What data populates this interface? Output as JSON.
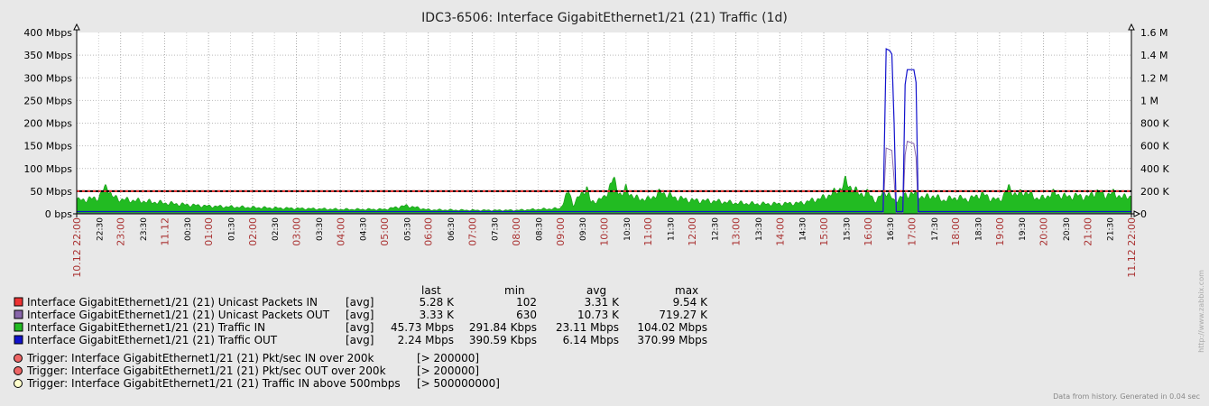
{
  "chart_data": {
    "type": "area",
    "title": "IDC3-6506: Interface GigabitEthernet1/21 (21) Traffic  (1d)",
    "y_left": {
      "range": [
        0,
        400
      ],
      "unit": "Mbps",
      "tick_labels": [
        "0 bps",
        "50 Mbps",
        "100 Mbps",
        "150 Mbps",
        "200 Mbps",
        "250 Mbps",
        "300 Mbps",
        "350 Mbps",
        "400 Mbps"
      ]
    },
    "y_right": {
      "range": [
        0,
        1600000
      ],
      "tick_labels": [
        "0",
        "200 K",
        "400 K",
        "600 K",
        "800 K",
        "1 M",
        "1.2 M",
        "1.4 M",
        "1.6 M"
      ]
    },
    "x_ticks": [
      {
        "label": "10.12 22:00",
        "major": true
      },
      {
        "label": "22:30",
        "major": false
      },
      {
        "label": "23:00",
        "major": true
      },
      {
        "label": "23:30",
        "major": false
      },
      {
        "label": "11.12",
        "major": true
      },
      {
        "label": "00:30",
        "major": false
      },
      {
        "label": "01:00",
        "major": true
      },
      {
        "label": "01:30",
        "major": false
      },
      {
        "label": "02:00",
        "major": true
      },
      {
        "label": "02:30",
        "major": false
      },
      {
        "label": "03:00",
        "major": true
      },
      {
        "label": "03:30",
        "major": false
      },
      {
        "label": "04:00",
        "major": true
      },
      {
        "label": "04:30",
        "major": false
      },
      {
        "label": "05:00",
        "major": true
      },
      {
        "label": "05:30",
        "major": false
      },
      {
        "label": "06:00",
        "major": true
      },
      {
        "label": "06:30",
        "major": false
      },
      {
        "label": "07:00",
        "major": true
      },
      {
        "label": "07:30",
        "major": false
      },
      {
        "label": "08:00",
        "major": true
      },
      {
        "label": "08:30",
        "major": false
      },
      {
        "label": "09:00",
        "major": true
      },
      {
        "label": "09:30",
        "major": false
      },
      {
        "label": "10:00",
        "major": true
      },
      {
        "label": "10:30",
        "major": false
      },
      {
        "label": "11:00",
        "major": true
      },
      {
        "label": "11:30",
        "major": false
      },
      {
        "label": "12:00",
        "major": true
      },
      {
        "label": "12:30",
        "major": false
      },
      {
        "label": "13:00",
        "major": true
      },
      {
        "label": "13:30",
        "major": false
      },
      {
        "label": "14:00",
        "major": true
      },
      {
        "label": "14:30",
        "major": false
      },
      {
        "label": "15:00",
        "major": true
      },
      {
        "label": "15:30",
        "major": false
      },
      {
        "label": "16:00",
        "major": true
      },
      {
        "label": "16:30",
        "major": false
      },
      {
        "label": "17:00",
        "major": true
      },
      {
        "label": "17:30",
        "major": false
      },
      {
        "label": "18:00",
        "major": true
      },
      {
        "label": "18:30",
        "major": false
      },
      {
        "label": "19:00",
        "major": true
      },
      {
        "label": "19:30",
        "major": false
      },
      {
        "label": "20:00",
        "major": true
      },
      {
        "label": "20:30",
        "major": false
      },
      {
        "label": "21:00",
        "major": true
      },
      {
        "label": "21:30",
        "major": false
      },
      {
        "label": "11.12 22:00",
        "major": true
      }
    ],
    "traffic_in_mbps": [
      {
        "t": 0.0,
        "v": 30
      },
      {
        "t": 0.25,
        "v": 32
      },
      {
        "t": 0.5,
        "v": 36
      },
      {
        "t": 0.7,
        "v": 64
      },
      {
        "t": 0.8,
        "v": 38
      },
      {
        "t": 1.0,
        "v": 32
      },
      {
        "t": 1.5,
        "v": 28
      },
      {
        "t": 2.0,
        "v": 24
      },
      {
        "t": 2.5,
        "v": 20
      },
      {
        "t": 3.0,
        "v": 17
      },
      {
        "t": 4.0,
        "v": 14
      },
      {
        "t": 5.0,
        "v": 12
      },
      {
        "t": 6.0,
        "v": 10
      },
      {
        "t": 7.0,
        "v": 10
      },
      {
        "t": 7.5,
        "v": 18
      },
      {
        "t": 8.0,
        "v": 9
      },
      {
        "t": 9.0,
        "v": 8
      },
      {
        "t": 10.0,
        "v": 8
      },
      {
        "t": 10.5,
        "v": 10
      },
      {
        "t": 11.0,
        "v": 12
      },
      {
        "t": 11.2,
        "v": 50
      },
      {
        "t": 11.3,
        "v": 20
      },
      {
        "t": 11.6,
        "v": 60
      },
      {
        "t": 11.7,
        "v": 25
      },
      {
        "t": 12.0,
        "v": 35
      },
      {
        "t": 12.2,
        "v": 75
      },
      {
        "t": 12.4,
        "v": 40
      },
      {
        "t": 12.5,
        "v": 55
      },
      {
        "t": 12.7,
        "v": 35
      },
      {
        "t": 13.0,
        "v": 32
      },
      {
        "t": 13.3,
        "v": 48
      },
      {
        "t": 13.6,
        "v": 36
      },
      {
        "t": 14.0,
        "v": 30
      },
      {
        "t": 14.5,
        "v": 28
      },
      {
        "t": 15.0,
        "v": 24
      },
      {
        "t": 15.5,
        "v": 22
      },
      {
        "t": 16.0,
        "v": 22
      },
      {
        "t": 16.5,
        "v": 24
      },
      {
        "t": 17.0,
        "v": 36
      },
      {
        "t": 17.3,
        "v": 50
      },
      {
        "t": 17.5,
        "v": 70
      },
      {
        "t": 17.8,
        "v": 44
      },
      {
        "t": 18.0,
        "v": 46
      },
      {
        "t": 18.2,
        "v": 28
      },
      {
        "t": 18.4,
        "v": 52
      },
      {
        "t": 18.6,
        "v": 28
      },
      {
        "t": 18.7,
        "v": 34
      },
      {
        "t": 19.0,
        "v": 46
      },
      {
        "t": 19.3,
        "v": 36
      },
      {
        "t": 19.5,
        "v": 40
      },
      {
        "t": 19.7,
        "v": 30
      },
      {
        "t": 20.0,
        "v": 36
      },
      {
        "t": 20.3,
        "v": 32
      },
      {
        "t": 20.6,
        "v": 44
      },
      {
        "t": 20.8,
        "v": 34
      },
      {
        "t": 21.0,
        "v": 30
      },
      {
        "t": 21.2,
        "v": 56
      },
      {
        "t": 21.4,
        "v": 42
      },
      {
        "t": 21.6,
        "v": 50
      },
      {
        "t": 21.8,
        "v": 36
      },
      {
        "t": 22.0,
        "v": 34
      },
      {
        "t": 22.2,
        "v": 46
      },
      {
        "t": 22.5,
        "v": 38
      },
      {
        "t": 22.8,
        "v": 40
      },
      {
        "t": 23.0,
        "v": 36
      },
      {
        "t": 23.2,
        "v": 50
      },
      {
        "t": 23.4,
        "v": 42
      },
      {
        "t": 23.6,
        "v": 46
      },
      {
        "t": 23.8,
        "v": 36
      },
      {
        "t": 24.0,
        "v": 40
      }
    ],
    "traffic_out_mbps": [
      {
        "t": 0.0,
        "v": 5
      },
      {
        "t": 18.35,
        "v": 5
      },
      {
        "t": 18.42,
        "v": 364
      },
      {
        "t": 18.5,
        "v": 360
      },
      {
        "t": 18.55,
        "v": 352
      },
      {
        "t": 18.6,
        "v": 200
      },
      {
        "t": 18.65,
        "v": 5
      },
      {
        "t": 18.8,
        "v": 5
      },
      {
        "t": 18.85,
        "v": 285
      },
      {
        "t": 18.9,
        "v": 318
      },
      {
        "t": 19.05,
        "v": 318
      },
      {
        "t": 19.1,
        "v": 290
      },
      {
        "t": 19.15,
        "v": 5
      },
      {
        "t": 24.0,
        "v": 5
      }
    ],
    "packets_out_k": [
      {
        "t": 0.0,
        "v": 3
      },
      {
        "t": 18.35,
        "v": 3
      },
      {
        "t": 18.42,
        "v": 580
      },
      {
        "t": 18.55,
        "v": 560
      },
      {
        "t": 18.6,
        "v": 300
      },
      {
        "t": 18.65,
        "v": 5
      },
      {
        "t": 18.8,
        "v": 5
      },
      {
        "t": 18.85,
        "v": 520
      },
      {
        "t": 18.9,
        "v": 640
      },
      {
        "t": 19.05,
        "v": 620
      },
      {
        "t": 19.1,
        "v": 500
      },
      {
        "t": 19.15,
        "v": 5
      },
      {
        "t": 24.0,
        "v": 3
      }
    ],
    "trigger_line_mbps": 50,
    "colors": {
      "packets_in": "#ee3333",
      "packets_out": "#8866aa",
      "traffic_in": "#22bb22",
      "traffic_out": "#1111cc",
      "trigger_packets": "#ee6666",
      "trigger_traffic": "#ffffcc",
      "date_label": "#aa3333"
    },
    "legend": {
      "headers": {
        "last": "last",
        "min": "min",
        "avg": "avg",
        "max": "max"
      },
      "items": [
        {
          "name": "Interface GigabitEthernet1/21 (21) Unicast Packets IN",
          "func": "[avg]",
          "last": "5.28 K",
          "min": "102",
          "avg": "3.31 K",
          "max": "9.54 K",
          "color": "#ee3333"
        },
        {
          "name": "Interface GigabitEthernet1/21 (21) Unicast Packets OUT",
          "func": "[avg]",
          "last": "3.33 K",
          "min": "630",
          "avg": "10.73 K",
          "max": "719.27 K",
          "color": "#8866aa"
        },
        {
          "name": "Interface GigabitEthernet1/21 (21) Traffic IN",
          "func": "[avg]",
          "last": "45.73 Mbps",
          "min": "291.84 Kbps",
          "avg": "23.11 Mbps",
          "max": "104.02 Mbps",
          "color": "#22bb22"
        },
        {
          "name": "Interface GigabitEthernet1/21 (21) Traffic OUT",
          "func": "[avg]",
          "last": "2.24 Mbps",
          "min": "390.59 Kbps",
          "avg": "6.14 Mbps",
          "max": "370.99 Mbps",
          "color": "#1111cc"
        }
      ],
      "triggers": [
        {
          "name": "Trigger: Interface GigabitEthernet1/21 (21) Pkt/sec IN over 200k",
          "cond": "[> 200000]",
          "color": "#ee6666"
        },
        {
          "name": "Trigger: Interface GigabitEthernet1/21 (21) Pkt/sec OUT over 200k",
          "cond": "[> 200000]",
          "color": "#ee6666"
        },
        {
          "name": "Trigger: Interface GigabitEthernet1/21 (21) Traffic IN above 500mbps",
          "cond": "[> 500000000]",
          "color": "#ffffcc"
        }
      ]
    },
    "footer": "Data from history. Generated in 0.04 sec",
    "watermark": "http://www.zabbix.com"
  }
}
